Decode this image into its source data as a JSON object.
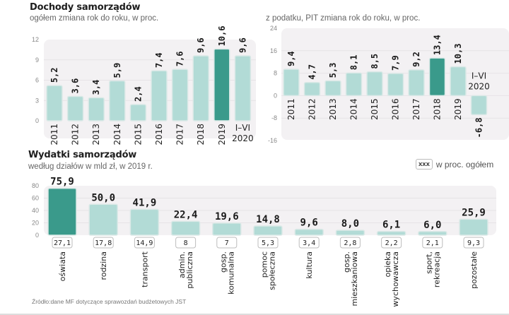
{
  "colors": {
    "bar": "#b2dbd6",
    "bar_stroke": "#dbe9e7",
    "highlight": "#3a9a8b",
    "panel": "#f3f1f3",
    "grid": "#e6e3e6"
  },
  "income": {
    "title": "Dochody samorządów",
    "subtitle": "ogółem zmiana rok do roku, w proc."
  },
  "pit": {
    "subtitle": "z podatku, PIT zmiana rok do roku, w proc."
  },
  "expenses": {
    "title": "Wydatki samorządów",
    "subtitle": "według działów w mld zł, w 2019 r.",
    "legend_box": "xxx",
    "legend_text": "w proc. ogółem"
  },
  "source": "Źródło:dane MF dotyczące sprawozdań budżetowych JST",
  "chart_data": [
    {
      "type": "bar",
      "title": "Dochody samorządów",
      "subtitle": "ogółem zmiana rok do roku, w proc.",
      "categories": [
        "2011",
        "2012",
        "2013",
        "2014",
        "2015",
        "2016",
        "2017",
        "2018",
        "2019",
        "I–VI 2020"
      ],
      "values": [
        5.2,
        3.6,
        3.4,
        5.9,
        2.4,
        7.4,
        7.6,
        9.6,
        10.6,
        9.6
      ],
      "labels": [
        "5,2",
        "3,6",
        "3,4",
        "5,9",
        "2,4",
        "7,4",
        "7,6",
        "9,6",
        "10,6",
        "9,6"
      ],
      "highlight": "2019",
      "yticks": [
        0,
        3,
        6,
        9,
        12
      ],
      "ylim": [
        0,
        12
      ],
      "grid": true
    },
    {
      "type": "bar",
      "title": "",
      "subtitle": "z podatku, PIT zmiana rok do roku, w proc.",
      "categories": [
        "2011",
        "2012",
        "2013",
        "2014",
        "2015",
        "2016",
        "2017",
        "2018",
        "2019",
        "I–VI 2020"
      ],
      "values": [
        9.4,
        4.7,
        5.3,
        8.1,
        8.5,
        7.9,
        9.2,
        13.4,
        10.3,
        -6.8
      ],
      "labels": [
        "9,4",
        "4,7",
        "5,3",
        "8,1",
        "8,5",
        "7,9",
        "9,2",
        "13,4",
        "10,3",
        "-6,8"
      ],
      "highlight": "2018",
      "yticks": [
        -16,
        -8,
        0,
        8,
        16,
        24
      ],
      "ylim": [
        -16,
        24
      ],
      "grid": true
    },
    {
      "type": "bar",
      "title": "Wydatki samorządów",
      "subtitle": "według działów w mld zł, w 2019 r.",
      "categories": [
        "oświata",
        "rodzina",
        "transport",
        "admin. publiczna",
        "gosp. komunalna",
        "pomoc społeczna",
        "kultura",
        "gosp. mieszkaniowa",
        "opieka wychowawcza",
        "sport, rekreacja",
        "pozostałe"
      ],
      "category_lines": [
        [
          "oświata"
        ],
        [
          "rodzina"
        ],
        [
          "transport"
        ],
        [
          "admin.",
          "publiczna"
        ],
        [
          "gosp.",
          "komunalna"
        ],
        [
          "pomoc",
          "społeczna"
        ],
        [
          "kultura"
        ],
        [
          "gosp.",
          "mieszkaniowa"
        ],
        [
          "opieka",
          "wychowawcza"
        ],
        [
          "sport,",
          "rekreacja"
        ],
        [
          "pozostałe"
        ]
      ],
      "values": [
        75.9,
        50.0,
        41.9,
        22.4,
        19.6,
        14.8,
        9.6,
        8.0,
        6.1,
        6.0,
        25.9
      ],
      "labels": [
        "75,9",
        "50,0",
        "41,9",
        "22,4",
        "19,6",
        "14,8",
        "9,6",
        "8,0",
        "6,1",
        "6,0",
        "25,9"
      ],
      "percent_of_total": [
        "27,1",
        "17,8",
        "14,9",
        "8",
        "7",
        "5,3",
        "3,4",
        "2,8",
        "2,2",
        "2,1",
        "9,3"
      ],
      "highlight": "oświata",
      "yticks": [
        0,
        20,
        40,
        60,
        80
      ],
      "ylim": [
        0,
        80
      ],
      "ylabel": "mld zł",
      "legend": "xxx w proc. ogółem",
      "legend_position": "top-right",
      "grid": true
    }
  ]
}
